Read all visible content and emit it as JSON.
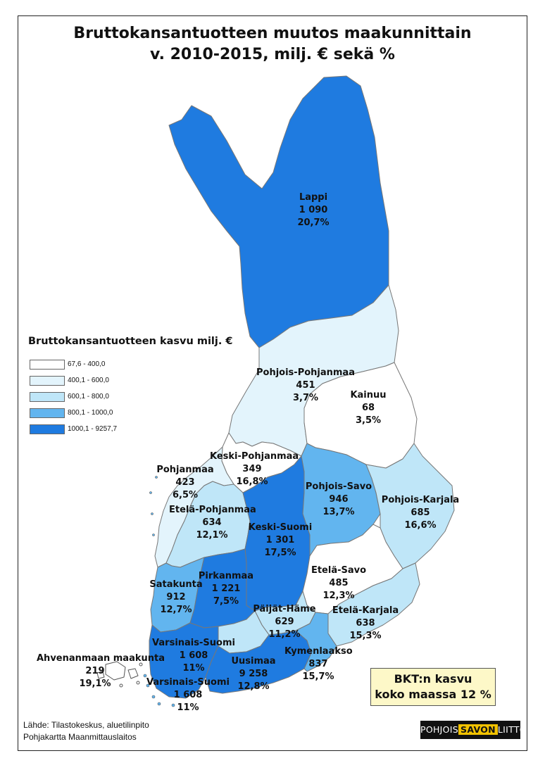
{
  "title": {
    "line1": "Bruttokansantuotteen muutos maakunnittain",
    "line2": "v. 2010-2015, milj. € sekä %"
  },
  "legend": {
    "title": "Bruttokansantuotteen kasvu milj. €",
    "classes": [
      {
        "label": "67,6 - 400,0",
        "color": "#ffffff"
      },
      {
        "label": "400,1 - 600,0",
        "color": "#e3f4fc"
      },
      {
        "label": "600,1 - 800,0",
        "color": "#bfe6f8"
      },
      {
        "label": "800,1 - 1000,0",
        "color": "#62b5ef"
      },
      {
        "label": "1000,1 - 9257,7",
        "color": "#1f7be0"
      }
    ]
  },
  "regions": {
    "lappi": {
      "name": "Lappi",
      "value": "1 090",
      "pct": "20,7%"
    },
    "pohjois_pohjanmaa": {
      "name": "Pohjois-Pohjanmaa",
      "value": "451",
      "pct": "3,7%"
    },
    "kainuu": {
      "name": "Kainuu",
      "value": "68",
      "pct": "3,5%"
    },
    "keski_pohjanmaa": {
      "name": "Keski-Pohjanmaa",
      "value": "349",
      "pct": "16,8%"
    },
    "pohjanmaa": {
      "name": "Pohjanmaa",
      "value": "423",
      "pct": "6,5%"
    },
    "etela_pohjanmaa": {
      "name": "Etelä-Pohjanmaa",
      "value": "634",
      "pct": "12,1%"
    },
    "keski_suomi": {
      "name": "Keski-Suomi",
      "value": "1 301",
      "pct": "17,5%"
    },
    "pohjois_savo": {
      "name": "Pohjois-Savo",
      "value": "946",
      "pct": "13,7%"
    },
    "pohjois_karjala": {
      "name": "Pohjois-Karjala",
      "value": "685",
      "pct": "16,6%"
    },
    "etela_savo": {
      "name": "Etelä-Savo",
      "value": "485",
      "pct": "12,3%"
    },
    "etela_karjala": {
      "name": "Etelä-Karjala",
      "value": "638",
      "pct": "15,3%"
    },
    "satakunta": {
      "name": "Satakunta",
      "value": "912",
      "pct": "12,7%"
    },
    "pirkanmaa": {
      "name": "Pirkanmaa",
      "value": "1 221",
      "pct": "7,5%"
    },
    "paijat_hame": {
      "name": "Päijät-Häme",
      "value": "629",
      "pct": "11,2%"
    },
    "varsinais_suomi": {
      "name": "Varsinais-Suomi",
      "value": "1 608",
      "pct": "11%"
    },
    "varsinais_suomi_2": {
      "name": "Varsinais-Suomi",
      "value": "1 608",
      "pct": "11%"
    },
    "uusimaa": {
      "name": "Uusimaa",
      "value": "9 258",
      "pct": "12,8%"
    },
    "kymenlaakso": {
      "name": "Kymenlaakso",
      "value": "837",
      "pct": "15,7%"
    },
    "ahvenanmaa": {
      "name": "Ahvenanmaan maakunta",
      "value": "219",
      "pct": "19,1%"
    }
  },
  "summary": {
    "line1": "BKT:n kasvu",
    "line2": "koko maassa  12 %"
  },
  "source": {
    "line1": "Lähde: Tilastokeskus, aluetilinpito",
    "line2": "Pohjakartta Maanmittauslaitos"
  },
  "logo": {
    "part1": "POHJOIS",
    "part2": "SAVON",
    "part3": "LIITTO"
  }
}
